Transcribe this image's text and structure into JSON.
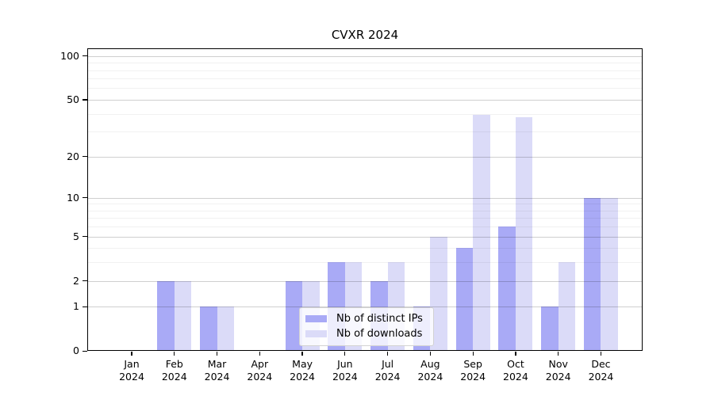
{
  "title": "CVXR 2024",
  "chart_data": {
    "type": "bar",
    "title": "CVXR 2024",
    "categories": [
      "Jan 2024",
      "Feb 2024",
      "Mar 2024",
      "Apr 2024",
      "May 2024",
      "Jun 2024",
      "Jul 2024",
      "Aug 2024",
      "Sep 2024",
      "Oct 2024",
      "Nov 2024",
      "Dec 2024"
    ],
    "series": [
      {
        "name": "Nb of distinct IPs",
        "color": "#a9aaf6",
        "values": [
          0,
          2,
          1,
          0,
          2,
          3,
          2,
          1,
          4,
          6,
          1,
          10
        ]
      },
      {
        "name": "Nb of downloads",
        "color": "#dbdbf8",
        "values": [
          0,
          2,
          1,
          0,
          2,
          3,
          3,
          5,
          39,
          38,
          3,
          10
        ]
      }
    ],
    "xlabel": "",
    "ylabel": "",
    "yscale": "log1p",
    "ylim": [
      0,
      113
    ],
    "y_major_ticks": [
      0,
      1,
      2,
      5,
      10,
      20,
      50,
      100
    ],
    "y_minor_ticks": [
      3,
      4,
      6,
      7,
      8,
      9,
      30,
      40,
      60,
      70,
      80,
      90
    ],
    "grid": "on",
    "legend_position": "lower center inside"
  }
}
